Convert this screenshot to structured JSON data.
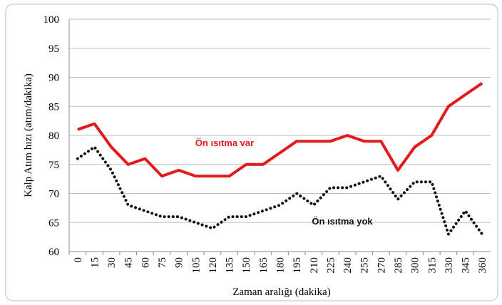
{
  "chart_data": {
    "type": "line",
    "x_label": "Zaman aralığı (dakika)",
    "y_label": "Kalp Atım hızı (atım/dakika)",
    "categories": [
      "0",
      "15",
      "30",
      "45",
      "60",
      "75",
      "90",
      "105",
      "120",
      "135",
      "150",
      "165",
      "180",
      "195",
      "210",
      "225",
      "240",
      "255",
      "270",
      "285",
      "300",
      "315",
      "330",
      "345",
      "360"
    ],
    "series": [
      {
        "name": "Ön ısıtma var",
        "color": "#e31a1c",
        "style": "solid",
        "values": [
          81,
          82,
          78,
          75,
          76,
          73,
          74,
          73,
          73,
          73,
          75,
          75,
          77,
          79,
          79,
          79,
          80,
          79,
          79,
          74,
          78,
          80,
          85,
          87,
          89
        ]
      },
      {
        "name": "Ön ısıtma yok",
        "color": "#111111",
        "style": "dotted",
        "values": [
          76,
          78,
          74,
          68,
          67,
          66,
          66,
          65,
          64,
          66,
          66,
          67,
          68,
          70,
          68,
          71,
          71,
          72,
          73,
          69,
          72,
          72,
          63,
          67,
          63
        ]
      }
    ],
    "ylim": [
      60,
      100
    ],
    "yticks": [
      60,
      65,
      70,
      75,
      80,
      85,
      90,
      95,
      100
    ],
    "grid": true
  }
}
